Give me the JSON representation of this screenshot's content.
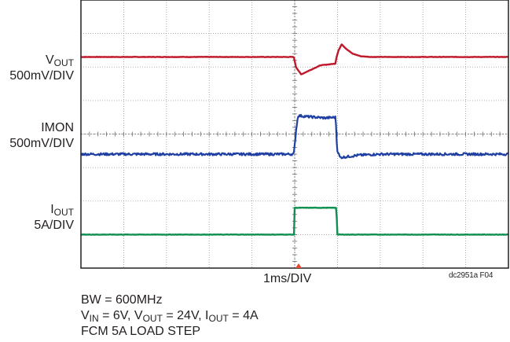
{
  "chart_data": {
    "type": "line",
    "title": "",
    "xlabel": "1ms/DIV",
    "grid": true,
    "x_divisions": 10,
    "y_divisions": 8,
    "x_unit": "ms",
    "trigger_x_div": 5,
    "series": [
      {
        "name": "VOUT",
        "scale": "500mV/DIV",
        "color": "#c0182b",
        "baseline_div": 6.3,
        "x": [
          0,
          4.98,
          5.03,
          5.15,
          5.35,
          5.6,
          5.95,
          5.98,
          6.02,
          6.1,
          6.2,
          6.35,
          6.55,
          6.8,
          7.1,
          10
        ],
        "y": [
          6.3,
          6.3,
          6.0,
          5.78,
          5.9,
          6.05,
          6.1,
          6.3,
          6.48,
          6.68,
          6.55,
          6.4,
          6.32,
          6.3,
          6.3,
          6.3
        ]
      },
      {
        "name": "IMON",
        "scale": "500mV/DIV",
        "color": "#1f3fa3",
        "baseline_div": 3.4,
        "x": [
          0,
          4.98,
          5.04,
          5.08,
          5.3,
          5.7,
          5.96,
          5.99,
          6.06,
          6.2,
          6.5,
          7.0,
          10
        ],
        "y": [
          3.4,
          3.4,
          4.2,
          4.55,
          4.52,
          4.48,
          4.5,
          3.55,
          3.3,
          3.32,
          3.37,
          3.4,
          3.4
        ]
      },
      {
        "name": "IOUT",
        "scale": "5A/DIV",
        "color": "#109050",
        "baseline_div": 1.0,
        "x": [
          0,
          4.99,
          5.0,
          5.98,
          5.99,
          10
        ],
        "y": [
          1.0,
          1.0,
          1.8,
          1.8,
          1.0,
          1.0
        ]
      }
    ]
  },
  "labels": {
    "vout_name": "V",
    "vout_sub": "OUT",
    "vout_scale": "500mV/DIV",
    "imon_name": "IMON",
    "imon_scale": "500mV/DIV",
    "iout_name": "I",
    "iout_sub": "OUT",
    "iout_scale": "5A/DIV"
  },
  "footer": {
    "time_div": "1ms/DIV",
    "figure_id": "dc2951a F04",
    "bw": "BW = 600MHz",
    "cond_vin_name": "V",
    "cond_vin_sub": "IN",
    "cond_vin_val": " = 6V, ",
    "cond_vout_name": "V",
    "cond_vout_sub": "OUT",
    "cond_vout_val": " = 24V, ",
    "cond_iout_name": "I",
    "cond_iout_sub": "OUT",
    "cond_iout_val": " = 4A",
    "mode": "FCM 5A LOAD STEP"
  },
  "colors": {
    "grid": "#9a9a9a",
    "frame": "#231f20",
    "trigger": "#e8452c"
  }
}
